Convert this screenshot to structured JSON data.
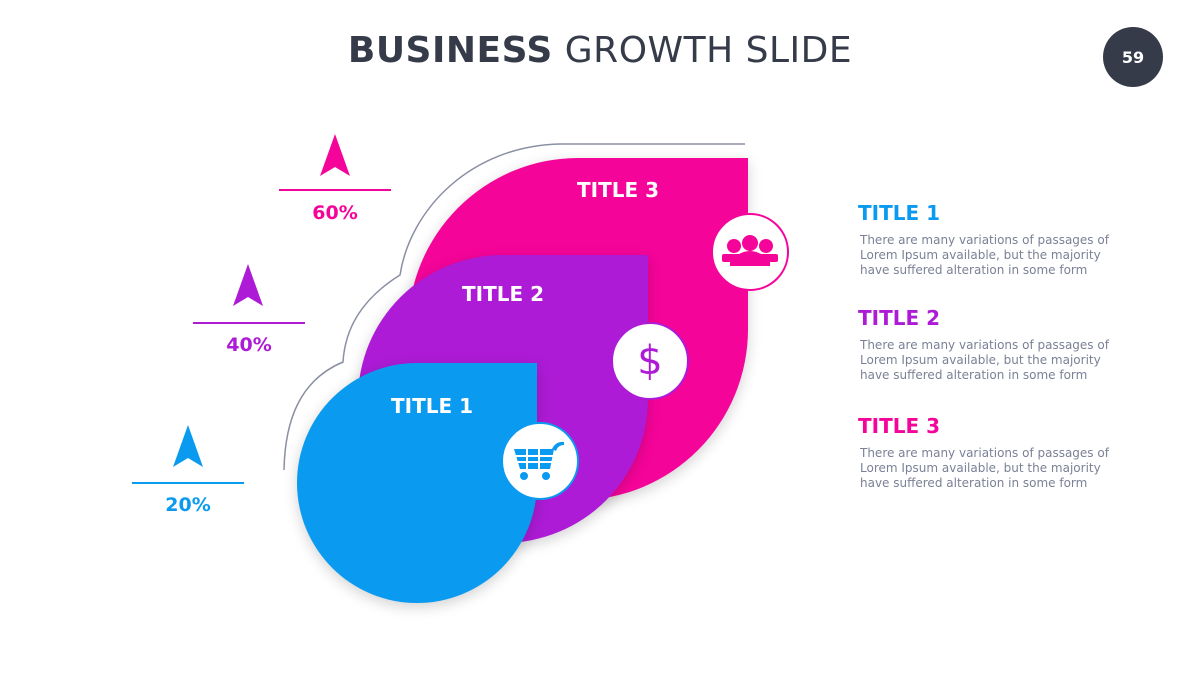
{
  "header": {
    "title_bold": "BUSINESS",
    "title_light": "GROWTH SLIDE",
    "page_number": "59"
  },
  "colors": {
    "blue": "#0a9bf0",
    "purple": "#ad1bd6",
    "pink": "#f5049a",
    "dark": "#363b4a"
  },
  "stages": [
    {
      "label": "TITLE 1",
      "percent": "20%",
      "icon": "shopping-cart-icon",
      "color": "#0a9bf0"
    },
    {
      "label": "TITLE 2",
      "percent": "40%",
      "icon": "dollar-icon",
      "color": "#ad1bd6"
    },
    {
      "label": "TITLE 3",
      "percent": "60%",
      "icon": "users-icon",
      "color": "#f5049a"
    }
  ],
  "descriptions": [
    {
      "title": "TITLE 1",
      "text": "There are many variations of passages of Lorem Ipsum available, but the majority have suffered alteration in some form"
    },
    {
      "title": "TITLE 2",
      "text": "There are many variations of passages of Lorem Ipsum available, but the majority have suffered alteration in some form"
    },
    {
      "title": "TITLE 3",
      "text": "There are many variations of passages of Lorem Ipsum available, but the majority have suffered alteration in some form"
    }
  ]
}
